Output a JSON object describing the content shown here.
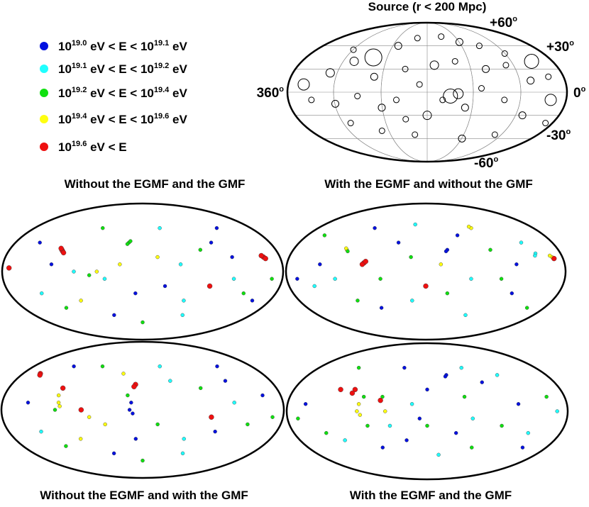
{
  "chart_data": {
    "type": "skymap",
    "legend": [
      {
        "color": "#0010e0",
        "label": [
          {
            "t": "10"
          },
          {
            "sup": "19.0"
          },
          {
            "t": " eV < E < 10"
          },
          {
            "sup": "19.1"
          },
          {
            "t": " eV"
          }
        ]
      },
      {
        "color": "#20ffff",
        "label": [
          {
            "t": "10"
          },
          {
            "sup": "19.1"
          },
          {
            "t": " eV < E < 10"
          },
          {
            "sup": "19.2"
          },
          {
            "t": " eV"
          }
        ]
      },
      {
        "color": "#10e010",
        "label": [
          {
            "t": "10"
          },
          {
            "sup": "19.2"
          },
          {
            "t": " eV < E < 10"
          },
          {
            "sup": "19.4"
          },
          {
            "t": " eV"
          }
        ]
      },
      {
        "color": "#ffff10",
        "label": [
          {
            "t": "10"
          },
          {
            "sup": "19.4"
          },
          {
            "t": " eV < E < 10"
          },
          {
            "sup": "19.6"
          },
          {
            "t": " eV"
          }
        ]
      },
      {
        "color": "#ee1010",
        "label": [
          {
            "t": "10"
          },
          {
            "sup": "19.6"
          },
          {
            "t": " eV < E"
          }
        ]
      }
    ],
    "source_map": {
      "title": "Source (r < 200 Mpc)",
      "axis_labels": [
        {
          "text": "+60",
          "sup": "o"
        },
        {
          "text": "+30",
          "sup": "o"
        },
        {
          "text": "0",
          "sup": "o"
        },
        {
          "text": "360",
          "sup": "o"
        },
        {
          "text": "-30",
          "sup": "o"
        },
        {
          "text": "-60",
          "sup": "o"
        }
      ],
      "sources": [
        [
          300,
          55,
          4
        ],
        [
          260,
          45,
          12
        ],
        [
          285,
          40,
          6
        ],
        [
          230,
          60,
          5
        ],
        [
          200,
          70,
          4
        ],
        [
          150,
          72,
          4
        ],
        [
          120,
          65,
          5
        ],
        [
          90,
          60,
          4
        ],
        [
          60,
          50,
          4
        ],
        [
          30,
          40,
          10
        ],
        [
          20,
          20,
          4
        ],
        [
          45,
          15,
          5
        ],
        [
          70,
          35,
          4
        ],
        [
          100,
          30,
          5
        ],
        [
          140,
          40,
          4
        ],
        [
          170,
          35,
          6
        ],
        [
          210,
          30,
          4
        ],
        [
          250,
          20,
          5
        ],
        [
          310,
          25,
          6
        ],
        [
          340,
          10,
          8
        ],
        [
          330,
          -10,
          4
        ],
        [
          300,
          -15,
          5
        ],
        [
          270,
          -5,
          4
        ],
        [
          240,
          -20,
          5
        ],
        [
          210,
          -35,
          4
        ],
        [
          180,
          -30,
          6
        ],
        [
          160,
          -10,
          4
        ],
        [
          130,
          -20,
          5
        ],
        [
          110,
          5,
          4
        ],
        [
          80,
          -10,
          4
        ],
        [
          50,
          -30,
          5
        ],
        [
          20,
          -10,
          8
        ],
        [
          10,
          -40,
          4
        ],
        [
          70,
          -55,
          4
        ],
        [
          120,
          -60,
          5
        ],
        [
          200,
          -55,
          4
        ],
        [
          250,
          -50,
          4
        ],
        [
          290,
          -40,
          4
        ],
        [
          150,
          -5,
          10
        ],
        [
          140,
          -2,
          7
        ],
        [
          190,
          10,
          4
        ],
        [
          220,
          -10,
          4
        ]
      ]
    },
    "maps": [
      {
        "title": "Without the EGMF and the GMF",
        "points": [
          [
            292,
            30,
            4
          ],
          [
            290,
            28,
            4
          ],
          [
            294,
            32,
            4
          ],
          [
            288,
            26,
            4
          ],
          [
            18,
            20,
            4
          ],
          [
            16,
            18,
            4
          ],
          [
            20,
            22,
            4
          ],
          [
            355,
            5,
            4
          ],
          [
            200,
            40,
            2
          ],
          [
            202,
            38,
            2
          ],
          [
            198,
            42,
            2
          ],
          [
            270,
            0,
            1
          ],
          [
            250,
            -5,
            2
          ],
          [
            240,
            0,
            3
          ],
          [
            230,
            -10,
            1
          ],
          [
            160,
            20,
            3
          ],
          [
            150,
            -20,
            0
          ],
          [
            130,
            10,
            1
          ],
          [
            100,
            30,
            2
          ],
          [
            80,
            40,
            0
          ],
          [
            60,
            -10,
            1
          ],
          [
            40,
            -30,
            2
          ],
          [
            20,
            -40,
            0
          ],
          [
            320,
            -30,
            1
          ],
          [
            300,
            -50,
            2
          ],
          [
            270,
            -40,
            3
          ],
          [
            230,
            -60,
            0
          ],
          [
            180,
            -70,
            2
          ],
          [
            120,
            -40,
            1
          ],
          [
            90,
            -20,
            4
          ],
          [
            50,
            60,
            0
          ],
          [
            150,
            60,
            1
          ],
          [
            250,
            60,
            2
          ],
          [
            330,
            40,
            0
          ],
          [
            10,
            -10,
            2
          ],
          [
            190,
            -30,
            0
          ],
          [
            210,
            10,
            3
          ],
          [
            60,
            20,
            0
          ],
          [
            110,
            -60,
            1
          ],
          [
            300,
            10,
            0
          ]
        ]
      },
      {
        "title": "With the EGMF and without the GMF",
        "points": [
          [
            290,
            30,
            3
          ],
          [
            292,
            32,
            3
          ],
          [
            288,
            28,
            2
          ],
          [
            262,
            12,
            4
          ],
          [
            264,
            10,
            4
          ],
          [
            260,
            14,
            4
          ],
          [
            150,
            30,
            0
          ],
          [
            152,
            28,
            0
          ],
          [
            10,
            20,
            3
          ],
          [
            12,
            22,
            3
          ],
          [
            8,
            18,
            4
          ],
          [
            30,
            25,
            1
          ],
          [
            32,
            22,
            1
          ],
          [
            100,
            60,
            3
          ],
          [
            102,
            62,
            3
          ],
          [
            200,
            20,
            2
          ],
          [
            240,
            -10,
            2
          ],
          [
            320,
            10,
            0
          ],
          [
            330,
            -20,
            1
          ],
          [
            280,
            -40,
            2
          ],
          [
            250,
            -50,
            0
          ],
          [
            200,
            -40,
            1
          ],
          [
            180,
            -20,
            4
          ],
          [
            150,
            -30,
            2
          ],
          [
            120,
            -10,
            1
          ],
          [
            80,
            -10,
            2
          ],
          [
            60,
            -30,
            0
          ],
          [
            40,
            40,
            1
          ],
          [
            90,
            30,
            2
          ],
          [
            130,
            50,
            0
          ],
          [
            200,
            65,
            1
          ],
          [
            270,
            60,
            0
          ],
          [
            340,
            50,
            2
          ],
          [
            350,
            -10,
            0
          ],
          [
            20,
            -50,
            2
          ],
          [
            110,
            -60,
            1
          ],
          [
            160,
            10,
            3
          ],
          [
            220,
            40,
            0
          ],
          [
            300,
            -10,
            1
          ],
          [
            60,
            10,
            0
          ]
        ]
      },
      {
        "title": "Without the EGMF and with the GMF",
        "points": [
          [
            292,
            20,
            3
          ],
          [
            290,
            10,
            3
          ],
          [
            294,
            0,
            2
          ],
          [
            288,
            5,
            3
          ],
          [
            290,
            30,
            4
          ],
          [
            190,
            35,
            4
          ],
          [
            192,
            32,
            4
          ],
          [
            195,
            10,
            0
          ],
          [
            197,
            0,
            0
          ],
          [
            193,
            -5,
            0
          ],
          [
            200,
            20,
            2
          ],
          [
            340,
            50,
            4
          ],
          [
            338,
            48,
            4
          ],
          [
            260,
            0,
            4
          ],
          [
            250,
            -10,
            3
          ],
          [
            230,
            -20,
            3
          ],
          [
            160,
            -20,
            2
          ],
          [
            140,
            40,
            1
          ],
          [
            100,
            30,
            2
          ],
          [
            80,
            -30,
            0
          ],
          [
            60,
            10,
            1
          ],
          [
            40,
            -20,
            2
          ],
          [
            20,
            20,
            0
          ],
          [
            320,
            -30,
            1
          ],
          [
            300,
            -50,
            2
          ],
          [
            270,
            -40,
            3
          ],
          [
            230,
            -60,
            0
          ],
          [
            180,
            -70,
            2
          ],
          [
            120,
            -40,
            1
          ],
          [
            90,
            -10,
            4
          ],
          [
            50,
            60,
            0
          ],
          [
            150,
            60,
            1
          ],
          [
            250,
            60,
            2
          ],
          [
            330,
            10,
            0
          ],
          [
            10,
            -10,
            2
          ],
          [
            190,
            -40,
            0
          ],
          [
            210,
            50,
            3
          ],
          [
            60,
            40,
            0
          ],
          [
            110,
            -60,
            1
          ],
          [
            300,
            60,
            0
          ]
        ]
      },
      {
        "title": "With the EGMF and the GMF",
        "points": [
          [
            280,
            30,
            4
          ],
          [
            282,
            25,
            4
          ],
          [
            300,
            30,
            4
          ],
          [
            270,
            10,
            3
          ],
          [
            272,
            0,
            3
          ],
          [
            268,
            -5,
            3
          ],
          [
            265,
            20,
            2
          ],
          [
            240,
            20,
            2
          ],
          [
            242,
            15,
            4
          ],
          [
            235,
            0,
            3
          ],
          [
            200,
            10,
            1
          ],
          [
            180,
            30,
            0
          ],
          [
            150,
            50,
            0
          ],
          [
            152,
            48,
            0
          ],
          [
            120,
            -10,
            1
          ],
          [
            130,
            20,
            2
          ],
          [
            100,
            40,
            0
          ],
          [
            80,
            -20,
            2
          ],
          [
            60,
            10,
            0
          ],
          [
            40,
            -30,
            1
          ],
          [
            20,
            20,
            2
          ],
          [
            320,
            -30,
            2
          ],
          [
            300,
            -40,
            1
          ],
          [
            250,
            -50,
            0
          ],
          [
            210,
            -40,
            0
          ],
          [
            180,
            -20,
            2
          ],
          [
            160,
            -60,
            1
          ],
          [
            140,
            -30,
            0
          ],
          [
            110,
            -50,
            2
          ],
          [
            340,
            10,
            0
          ],
          [
            350,
            -10,
            2
          ],
          [
            30,
            -50,
            0
          ],
          [
            70,
            50,
            1
          ],
          [
            220,
            60,
            0
          ],
          [
            300,
            60,
            2
          ],
          [
            10,
            0,
            1
          ],
          [
            190,
            -10,
            0
          ],
          [
            230,
            -20,
            1
          ],
          [
            260,
            -20,
            2
          ],
          [
            120,
            60,
            1
          ]
        ]
      }
    ]
  }
}
